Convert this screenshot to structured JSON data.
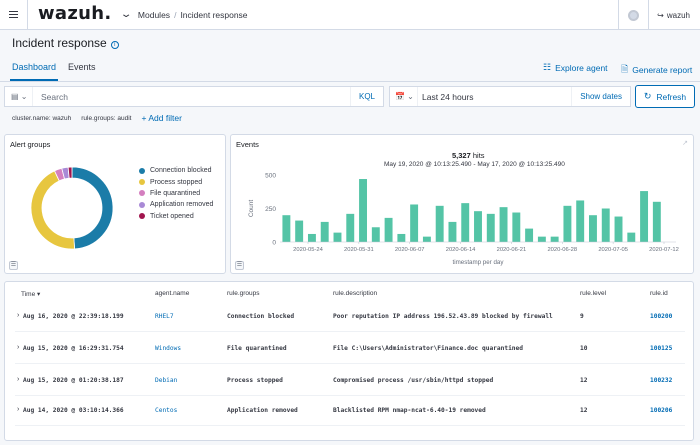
{
  "header": {
    "logo": "wazuh.",
    "breadcrumb": [
      "Modules",
      "Incident response"
    ],
    "user": "wazuh"
  },
  "page": {
    "title": "Incident response"
  },
  "tabs": [
    {
      "label": "Dashboard",
      "active": true
    },
    {
      "label": "Events",
      "active": false
    }
  ],
  "actions": {
    "explore_agent": "Explore agent",
    "generate_report": "Generate report"
  },
  "search": {
    "placeholder": "Search",
    "kql": "KQL"
  },
  "date": {
    "range": "Last 24 hours",
    "show_dates": "Show dates",
    "refresh": "Refresh"
  },
  "filters": {
    "pills": [
      "cluster.name: wazuh",
      "rule.groups: audit"
    ],
    "add_filter": "+ Add filter"
  },
  "alert_groups": {
    "title": "Alert groups",
    "chart_data": {
      "type": "pie",
      "donut": true,
      "labels": [
        "Connection blocked",
        "Process stopped",
        "File quarantined",
        "Application removed",
        "Ticket opened"
      ],
      "values": [
        49,
        44,
        3,
        2.5,
        1.5
      ],
      "colors": [
        "#1b7ca8",
        "#e7c63f",
        "#d47fbf",
        "#a98ad6",
        "#a1154e"
      ]
    }
  },
  "events": {
    "title": "Events",
    "hits": "5,327",
    "hits_label": "hits",
    "range_text": "May 19, 2020 @ 10:13:25.490 - May 17, 2020 @ 10:13:25.490",
    "chart_data": {
      "type": "bar",
      "color": "#54c4a6",
      "ylabel": "Count",
      "xlabel": "timestamp per day",
      "yticks": [
        "0",
        "250",
        "500"
      ],
      "ylim": [
        0,
        500
      ],
      "xticks": [
        "2020-05-24",
        "2020-05-31",
        "2020-06-07",
        "2020-06-14",
        "2020-06-21",
        "2020-06-28",
        "2020-07-05",
        "2020-07-12"
      ],
      "values": [
        200,
        160,
        60,
        150,
        70,
        210,
        470,
        110,
        180,
        60,
        280,
        40,
        270,
        150,
        290,
        230,
        210,
        260,
        220,
        100,
        40,
        40,
        270,
        310,
        200,
        250,
        190,
        70,
        380,
        300,
        0
      ]
    }
  },
  "table": {
    "columns": [
      "Time",
      "agent.name",
      "rule.groups",
      "rule.description",
      "rule.level",
      "rule.id"
    ],
    "rows": [
      {
        "time": "Aug 16, 2020 @ 22:39:18.199",
        "agent": "RHEL7",
        "group": "Connection blocked",
        "description": "Poor reputation IP address 196.52.43.89 blocked by firewall",
        "level": "9",
        "id": "100200"
      },
      {
        "time": "Aug 15, 2020 @ 16:29:31.754",
        "agent": "Windows",
        "group": "File quarantined",
        "description": "File C:\\Users\\Administrator\\Finance.doc quarantined",
        "level": "10",
        "id": "100125"
      },
      {
        "time": "Aug 15, 2020 @ 01:20:38.187",
        "agent": "Debian",
        "group": "Process stopped",
        "description": "Compromised process /usr/sbin/httpd stopped",
        "level": "12",
        "id": "100232"
      },
      {
        "time": "Aug 14, 2020 @ 03:10:14.366",
        "agent": "Centos",
        "group": "Application removed",
        "description": "Blacklisted RPM nmap-ncat-6.40-19 removed",
        "level": "12",
        "id": "100206"
      }
    ]
  }
}
